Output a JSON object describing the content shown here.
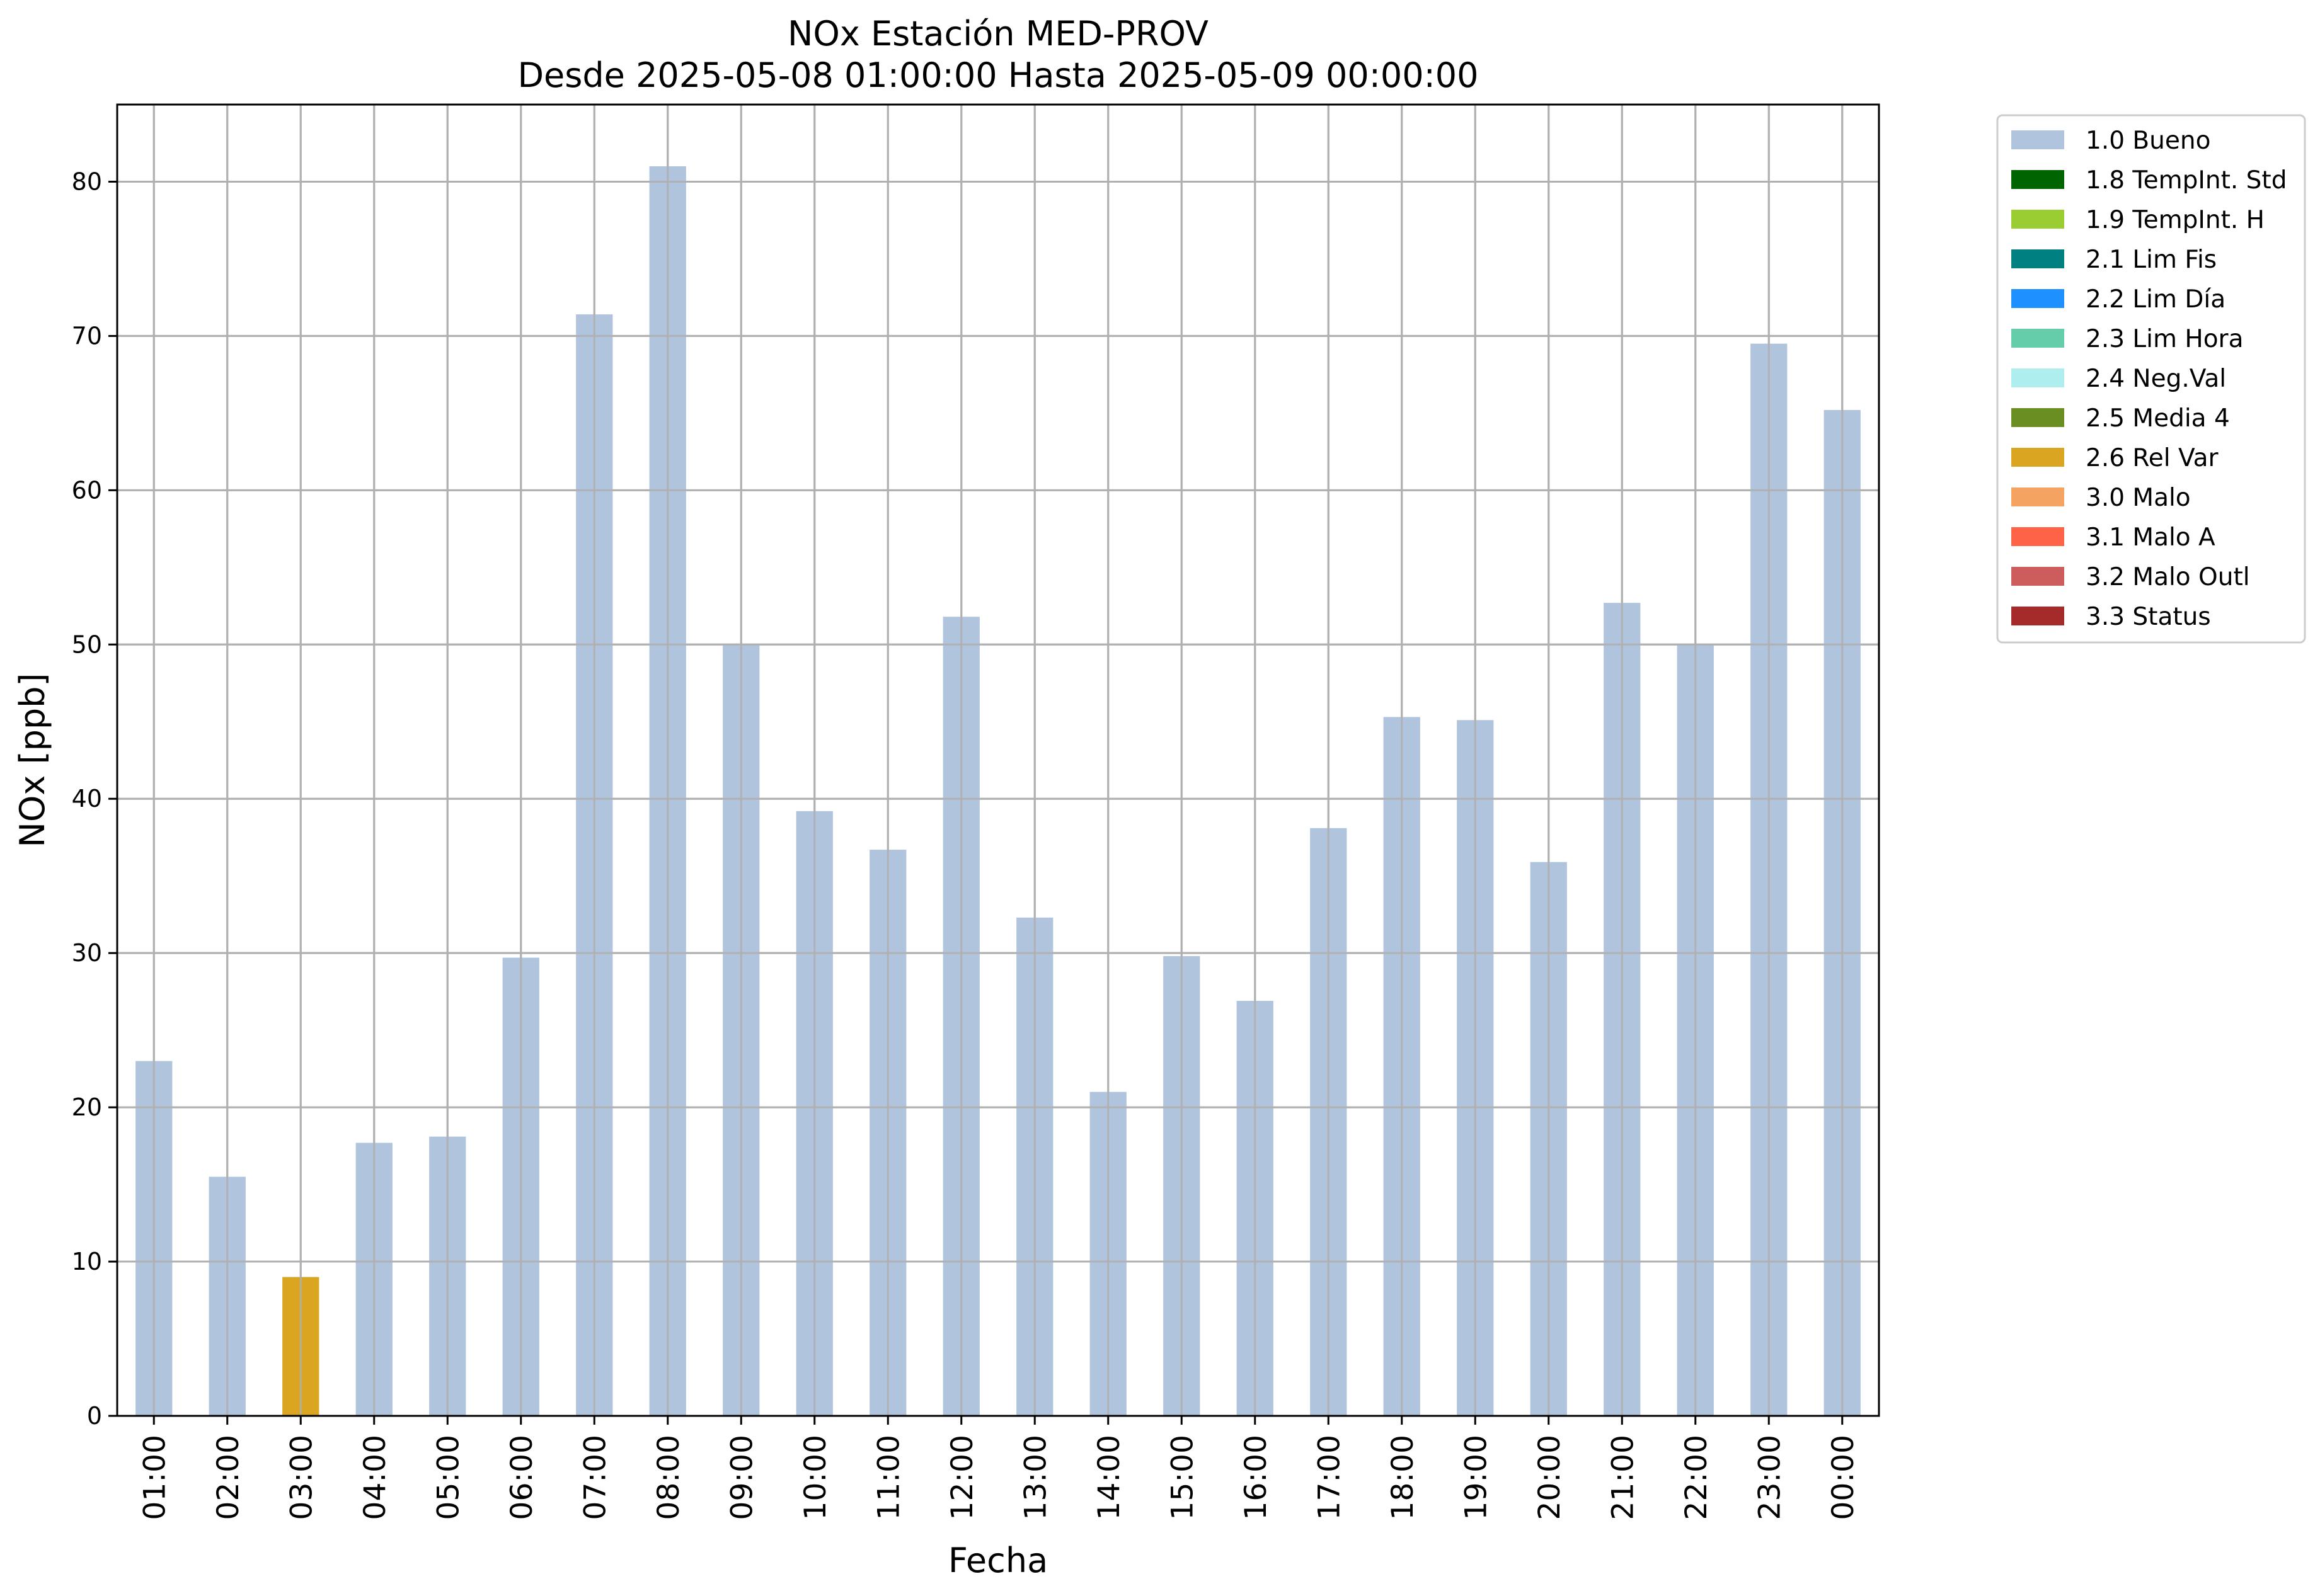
{
  "chart_data": {
    "type": "bar",
    "title": "NOx Estación MED-PROV",
    "subtitle": "Desde 2025-05-08 01:00:00 Hasta 2025-05-09 00:00:00",
    "xlabel": "Fecha",
    "ylabel": "NOx [ppb]",
    "ylim": [
      0,
      85
    ],
    "yticks": [
      0,
      10,
      20,
      30,
      40,
      50,
      60,
      70,
      80
    ],
    "grid": true,
    "legend_position": "outside-top-right",
    "categories": [
      "01:00",
      "02:00",
      "03:00",
      "04:00",
      "05:00",
      "06:00",
      "07:00",
      "08:00",
      "09:00",
      "10:00",
      "11:00",
      "12:00",
      "13:00",
      "14:00",
      "15:00",
      "16:00",
      "17:00",
      "18:00",
      "19:00",
      "20:00",
      "21:00",
      "22:00",
      "23:00",
      "00:00"
    ],
    "values": [
      23.0,
      15.5,
      9.0,
      17.7,
      18.1,
      29.7,
      71.4,
      81.0,
      50.0,
      39.2,
      36.7,
      51.8,
      32.3,
      21.0,
      29.8,
      26.9,
      38.1,
      45.3,
      45.1,
      35.9,
      52.7,
      50.0,
      69.5,
      65.2
    ],
    "flags": [
      "1.0 Bueno",
      "1.0 Bueno",
      "2.6 Rel Var",
      "1.0 Bueno",
      "1.0 Bueno",
      "1.0 Bueno",
      "1.0 Bueno",
      "1.0 Bueno",
      "1.0 Bueno",
      "1.0 Bueno",
      "1.0 Bueno",
      "1.0 Bueno",
      "1.0 Bueno",
      "1.0 Bueno",
      "1.0 Bueno",
      "1.0 Bueno",
      "1.0 Bueno",
      "1.0 Bueno",
      "1.0 Bueno",
      "1.0 Bueno",
      "1.0 Bueno",
      "1.0 Bueno",
      "1.0 Bueno",
      "1.0 Bueno"
    ],
    "legend": [
      {
        "label": "1.0 Bueno",
        "color": "#b0c4de"
      },
      {
        "label": "1.8 TempInt. Std",
        "color": "#006400"
      },
      {
        "label": "1.9 TempInt. H",
        "color": "#9acd32"
      },
      {
        "label": "2.1 Lim Fis",
        "color": "#008080"
      },
      {
        "label": "2.2 Lim Día",
        "color": "#1e90ff"
      },
      {
        "label": "2.3 Lim Hora",
        "color": "#66cdaa"
      },
      {
        "label": "2.4 Neg.Val",
        "color": "#afeeee"
      },
      {
        "label": "2.5 Media 4",
        "color": "#6b8e23"
      },
      {
        "label": "2.6 Rel Var",
        "color": "#daa520"
      },
      {
        "label": "3.0 Malo",
        "color": "#f4a460"
      },
      {
        "label": "3.1 Malo A",
        "color": "#ff6347"
      },
      {
        "label": "3.2 Malo Outl",
        "color": "#cd5c5c"
      },
      {
        "label": "3.3 Status",
        "color": "#a52a2a"
      }
    ]
  }
}
